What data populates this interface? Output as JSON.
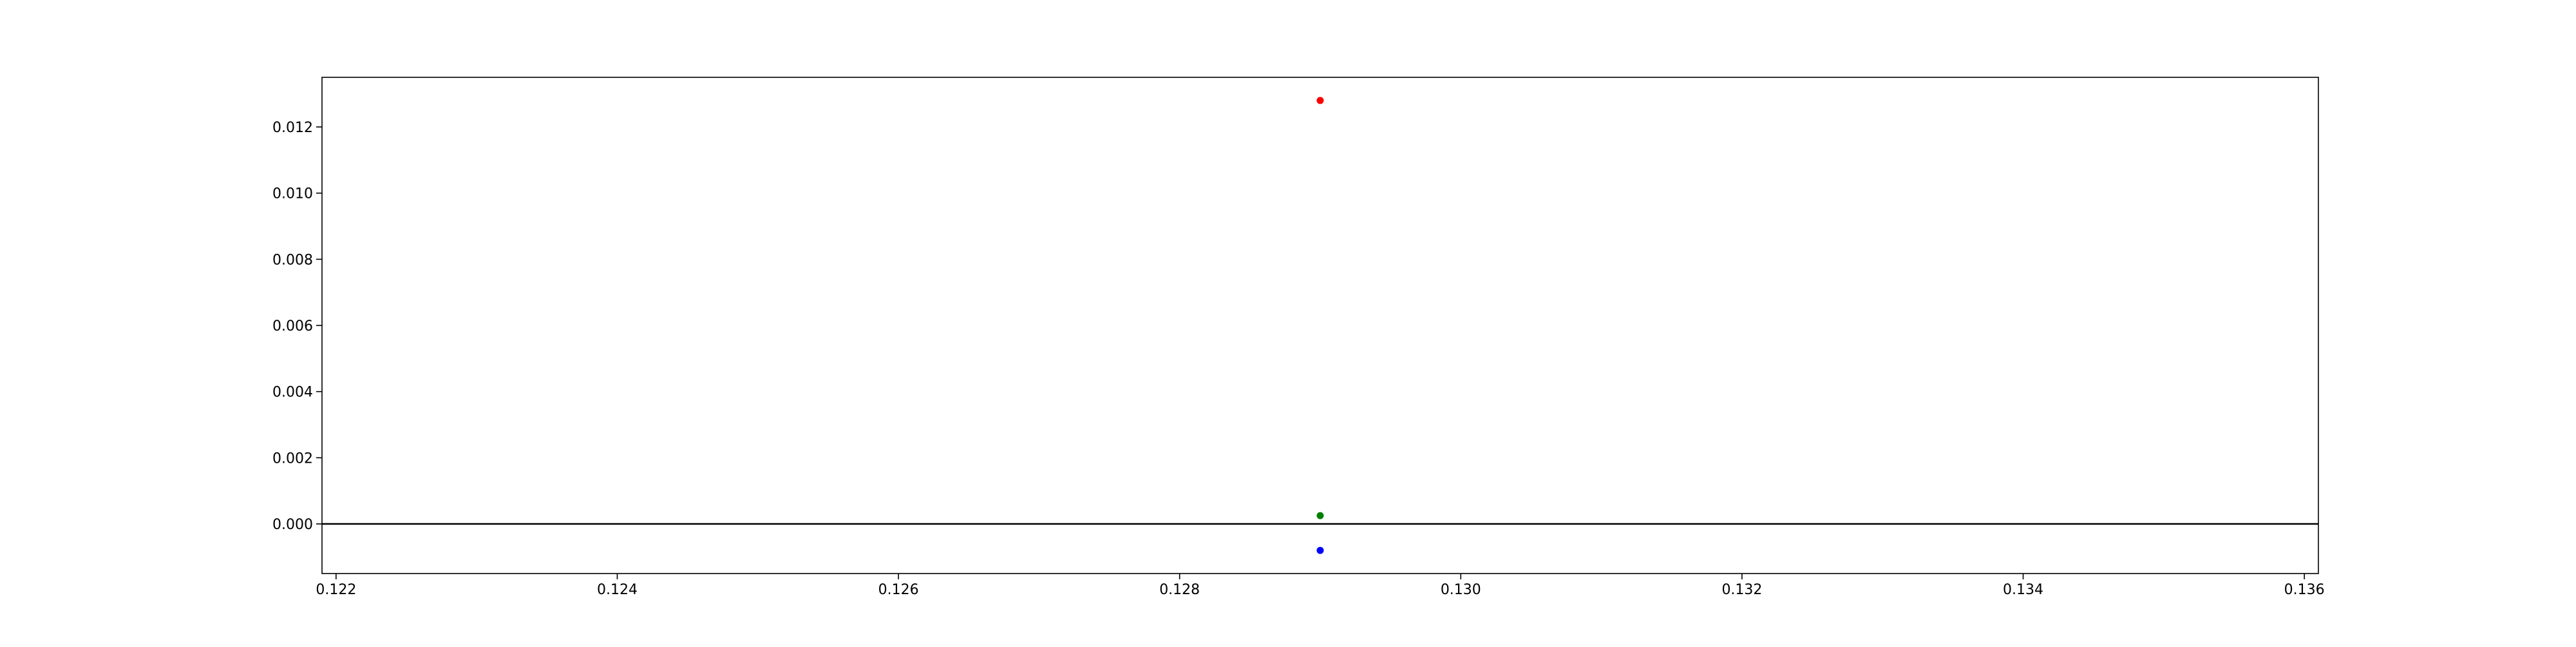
{
  "chart_data": {
    "type": "scatter",
    "title": "",
    "xlabel": "",
    "ylabel": "",
    "xlim": [
      0.1219,
      0.1361
    ],
    "ylim": [
      -0.0015,
      0.0135
    ],
    "x_ticks": [
      0.122,
      0.124,
      0.126,
      0.128,
      0.13,
      0.132,
      0.134,
      0.136
    ],
    "x_tick_labels": [
      "0.122",
      "0.124",
      "0.126",
      "0.128",
      "0.130",
      "0.132",
      "0.134",
      "0.136"
    ],
    "y_ticks": [
      0.0,
      0.002,
      0.004,
      0.006,
      0.008,
      0.01,
      0.012
    ],
    "y_tick_labels": [
      "0.000",
      "0.002",
      "0.004",
      "0.006",
      "0.008",
      "0.010",
      "0.012"
    ],
    "grid": false,
    "reference_line": {
      "y": 0,
      "color": "#000000"
    },
    "points": [
      {
        "x": 0.129,
        "y": 0.0128,
        "color": "#ff0000"
      },
      {
        "x": 0.129,
        "y": 0.00025,
        "color": "#008000"
      },
      {
        "x": 0.129,
        "y": -0.0008,
        "color": "#0000ff"
      }
    ]
  }
}
